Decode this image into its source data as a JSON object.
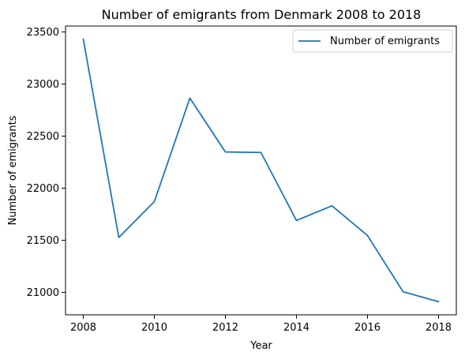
{
  "chart_data": {
    "type": "line",
    "title": "Number of emigrants from Denmark 2008 to 2018",
    "xlabel": "Year",
    "ylabel": "Number of emigrants",
    "x": [
      2008,
      2009,
      2010,
      2011,
      2012,
      2013,
      2014,
      2015,
      2016,
      2017,
      2018
    ],
    "series": [
      {
        "name": "Number of emigrants",
        "values": [
          23431,
          21527,
          21871,
          22865,
          22348,
          22343,
          21690,
          21831,
          21545,
          21006,
          20910
        ],
        "color": "#1f77b4"
      }
    ],
    "xticks": [
      2008,
      2010,
      2012,
      2014,
      2016,
      2018
    ],
    "xtick_labels": [
      "2008",
      "2010",
      "2012",
      "2014",
      "2016",
      "2018"
    ],
    "yticks": [
      21000,
      21500,
      22000,
      22500,
      23000,
      23500
    ],
    "ytick_labels": [
      "21000",
      "21500",
      "22000",
      "22500",
      "23000",
      "23500"
    ],
    "xlim": [
      2007.5,
      2018.5
    ],
    "ylim": [
      20784,
      23557
    ],
    "grid": false,
    "legend_position": "top-right"
  }
}
